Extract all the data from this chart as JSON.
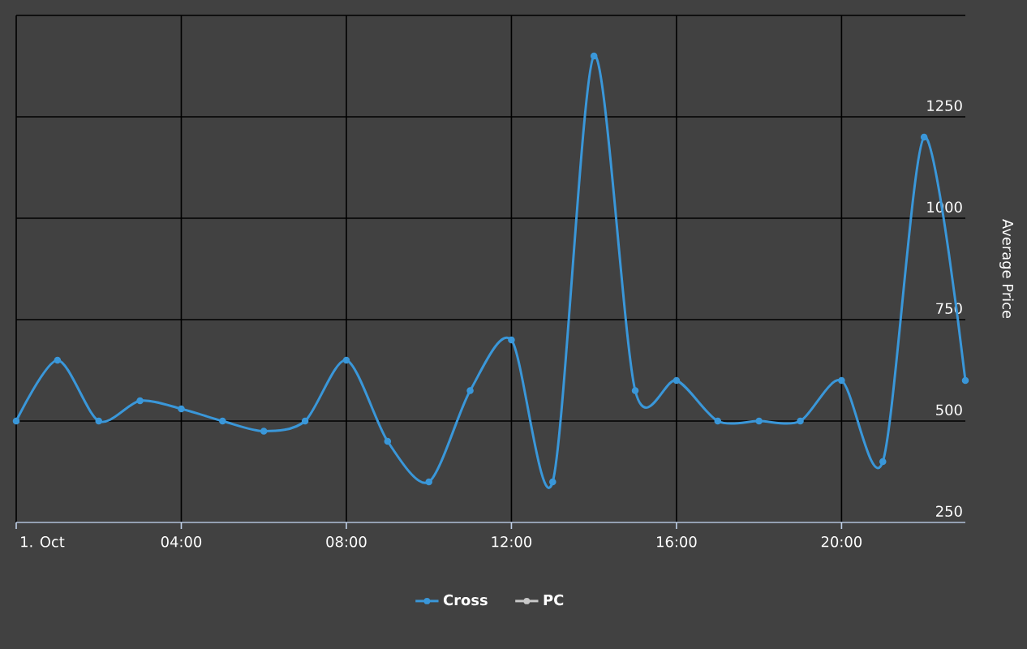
{
  "chart_data": {
    "type": "line",
    "ylabel": "Average Price",
    "x": [
      0,
      1,
      2,
      3,
      4,
      5,
      6,
      7,
      8,
      9,
      10,
      11,
      12,
      13,
      14,
      15,
      16,
      17,
      18,
      19,
      20,
      21,
      22,
      23
    ],
    "xlim": [
      0,
      23
    ],
    "xticks": [
      {
        "value": 0,
        "label": "1. Oct"
      },
      {
        "value": 4,
        "label": "04:00"
      },
      {
        "value": 8,
        "label": "08:00"
      },
      {
        "value": 12,
        "label": "12:00"
      },
      {
        "value": 16,
        "label": "16:00"
      },
      {
        "value": 20,
        "label": "20:00"
      }
    ],
    "ylim": [
      250,
      1500
    ],
    "yticks": [
      250,
      500,
      750,
      1000,
      1250,
      {
        "value": 1500,
        "label": null
      }
    ],
    "series": [
      {
        "name": "Cross",
        "color": "#3a97d9",
        "values": [
          500,
          650,
          500,
          550,
          530,
          500,
          475,
          500,
          650,
          450,
          350,
          575,
          700,
          350,
          1400,
          575,
          600,
          500,
          500,
          500,
          600,
          400,
          1200,
          600
        ]
      },
      {
        "name": "PC",
        "color": "#c8c8c8",
        "values": [
          null,
          null,
          null,
          null,
          null,
          null,
          null,
          null,
          null,
          null,
          null,
          null,
          null,
          null,
          null,
          null,
          null,
          null,
          null,
          null,
          null,
          null,
          null,
          null
        ]
      }
    ],
    "grid": true,
    "legend": "bottom",
    "marker": "circle",
    "line_style": "solid"
  }
}
